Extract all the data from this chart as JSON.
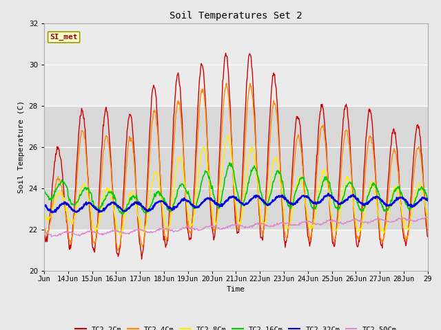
{
  "title": "Soil Temperatures Set 2",
  "xlabel": "Time",
  "ylabel": "Soil Temperature (C)",
  "ylim": [
    20,
    32
  ],
  "fig_bg": "#e8e8e8",
  "plot_bg": "#ebebeb",
  "band_color": "#d8d8d8",
  "band_lo": 22,
  "band_hi": 28,
  "grid_color": "#ffffff",
  "annotation_text": "SI_met",
  "annotation_bg": "#ffffcc",
  "annotation_border": "#999900",
  "annotation_text_color": "#990000",
  "series": {
    "TC2_2Cm": {
      "color": "#cc0000",
      "lw": 1.0
    },
    "TC2_4Cm": {
      "color": "#ff8800",
      "lw": 1.0
    },
    "TC2_8Cm": {
      "color": "#ffee00",
      "lw": 1.0
    },
    "TC2_16Cm": {
      "color": "#00cc00",
      "lw": 1.2
    },
    "TC2_32Cm": {
      "color": "#0000dd",
      "lw": 1.8
    },
    "TC2_50Cm": {
      "color": "#dd88cc",
      "lw": 1.0
    }
  },
  "tick_labels": [
    "Jun",
    "14Jun",
    "15Jun",
    "16Jun",
    "17Jun",
    "18Jun",
    "19Jun",
    "20Jun",
    "21Jun",
    "22Jun",
    "23Jun",
    "24Jun",
    "25Jun",
    "26Jun",
    "27Jun",
    "28Jun",
    "29"
  ],
  "tick_positions": [
    0,
    1,
    2,
    3,
    4,
    5,
    6,
    7,
    8,
    9,
    10,
    11,
    12,
    13,
    14,
    15,
    16
  ],
  "yticks": [
    20,
    22,
    24,
    26,
    28,
    30,
    32
  ]
}
